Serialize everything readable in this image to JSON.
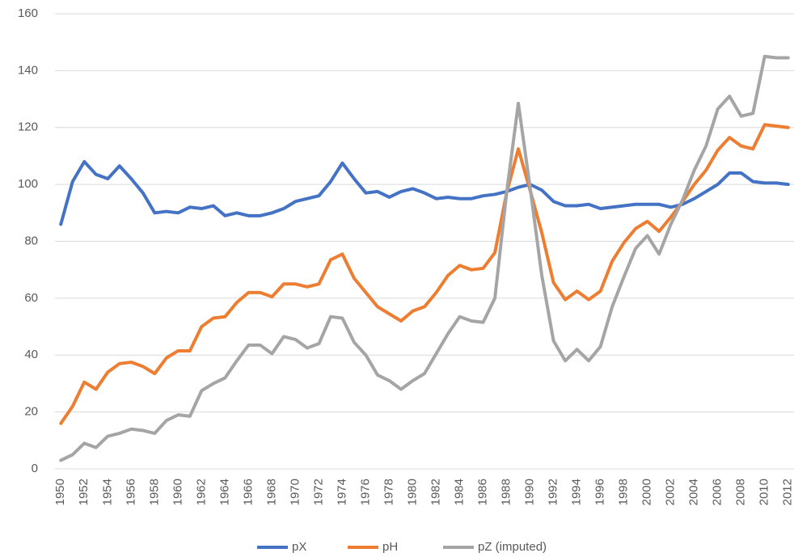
{
  "chart_data": {
    "type": "line",
    "x": [
      1950,
      1951,
      1952,
      1953,
      1954,
      1955,
      1956,
      1957,
      1958,
      1959,
      1960,
      1961,
      1962,
      1963,
      1964,
      1965,
      1966,
      1967,
      1968,
      1969,
      1970,
      1971,
      1972,
      1973,
      1974,
      1975,
      1976,
      1977,
      1978,
      1979,
      1980,
      1981,
      1982,
      1983,
      1984,
      1985,
      1986,
      1987,
      1988,
      1989,
      1990,
      1991,
      1992,
      1993,
      1994,
      1995,
      1996,
      1997,
      1998,
      1999,
      2000,
      2001,
      2002,
      2003,
      2004,
      2005,
      2006,
      2007,
      2008,
      2009,
      2010,
      2011,
      2012
    ],
    "xlim": [
      1949.5,
      2012.5
    ],
    "xticks": [
      1950,
      1952,
      1954,
      1956,
      1958,
      1960,
      1962,
      1964,
      1966,
      1968,
      1970,
      1972,
      1974,
      1976,
      1978,
      1980,
      1982,
      1984,
      1986,
      1988,
      1990,
      1992,
      1994,
      1996,
      1998,
      2000,
      2002,
      2004,
      2006,
      2008,
      2010,
      2012
    ],
    "ylim": [
      0,
      160
    ],
    "yticks": [
      0,
      20,
      40,
      60,
      80,
      100,
      120,
      140,
      160
    ],
    "grid": true,
    "legend": "bottom",
    "series": [
      {
        "name": "pX",
        "color": "#4472c4",
        "values": [
          86,
          101,
          108,
          103.5,
          102,
          106.5,
          102,
          97,
          90,
          90.5,
          90,
          92,
          91.5,
          92.5,
          89,
          90,
          89,
          89,
          90,
          91.5,
          94,
          95,
          96,
          101,
          107.5,
          102,
          97,
          97.5,
          95.5,
          97.5,
          98.5,
          97,
          95,
          95.5,
          95,
          95,
          96,
          96.5,
          97.5,
          99,
          100,
          98,
          94,
          92.5,
          92.5,
          93,
          91.5,
          92,
          92.5,
          93,
          93,
          93,
          92,
          93,
          95,
          97.5,
          100,
          104,
          104,
          101,
          100.5,
          100.5,
          100
        ]
      },
      {
        "name": "pH",
        "color": "#ed7d31",
        "values": [
          16,
          22,
          30.5,
          28,
          34,
          37,
          37.5,
          36,
          33.5,
          39,
          41.5,
          41.5,
          50,
          53,
          53.5,
          58.5,
          62,
          62,
          60.5,
          65,
          65,
          64,
          65,
          73.5,
          75.5,
          67,
          62,
          57,
          54.5,
          52,
          55.5,
          57,
          62,
          68,
          71.5,
          70,
          70.5,
          76,
          97,
          112.5,
          98,
          83,
          65.5,
          59.5,
          62.5,
          59.5,
          62.5,
          73,
          79.5,
          84.5,
          87,
          83.5,
          88.5,
          94,
          100,
          105,
          112,
          116.5,
          113.5,
          112.5,
          121,
          120.5,
          120
        ]
      },
      {
        "name": "pZ (imputed)",
        "color": "#a5a5a5",
        "values": [
          3,
          5,
          9,
          7.5,
          11.5,
          12.5,
          14,
          13.5,
          12.5,
          17,
          19,
          18.5,
          27.5,
          30,
          32,
          38,
          43.5,
          43.5,
          40.5,
          46.5,
          45.5,
          42.5,
          44,
          53.5,
          53,
          44.5,
          40,
          33,
          31,
          28,
          31,
          33.5,
          40.5,
          47.5,
          53.5,
          52,
          51.5,
          60,
          97,
          128.5,
          99,
          68,
          45,
          38,
          42,
          38,
          43,
          57,
          67.5,
          77.5,
          82,
          75.5,
          86,
          94.5,
          105,
          113.5,
          126.5,
          131,
          124,
          125,
          145,
          144.5,
          144.5
        ]
      }
    ]
  }
}
